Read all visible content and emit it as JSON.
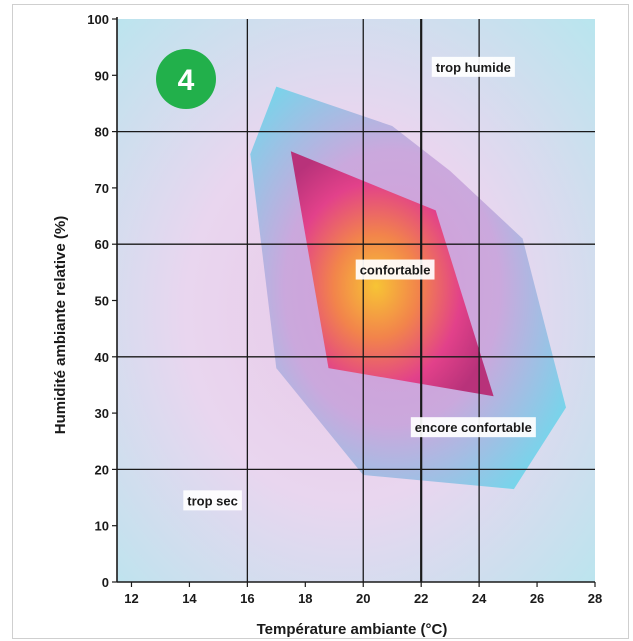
{
  "badge": {
    "text": "4",
    "color": "#22b04b"
  },
  "chart_data": {
    "type": "area",
    "xlabel": "Température ambiante (°C)",
    "ylabel": "Humidité ambiante relative (%)",
    "xlim": [
      11.5,
      28
    ],
    "ylim": [
      0,
      100
    ],
    "xticks": [
      12,
      14,
      16,
      18,
      20,
      22,
      24,
      26,
      28
    ],
    "yticks": [
      0,
      10,
      20,
      30,
      40,
      50,
      60,
      70,
      80,
      90,
      100
    ],
    "grid_x": [
      16,
      20,
      22,
      24
    ],
    "grid_y": [
      20,
      40,
      60,
      80
    ],
    "bold_grid_x": [
      22
    ],
    "regions": [
      {
        "name": "encore confortable",
        "color": "#7fd3ea",
        "points": [
          [
            17,
            88
          ],
          [
            21,
            81
          ],
          [
            23,
            73
          ],
          [
            25.5,
            61
          ],
          [
            27,
            31
          ],
          [
            25.2,
            16.5
          ],
          [
            20,
            19
          ],
          [
            17,
            38
          ],
          [
            16.1,
            76
          ]
        ]
      },
      {
        "name": "confortable",
        "color": "#d83a8c",
        "points": [
          [
            17.5,
            76.5
          ],
          [
            22.5,
            66
          ],
          [
            24.5,
            33
          ],
          [
            18.8,
            38
          ]
        ]
      }
    ],
    "annotations": [
      {
        "text": "trop humide",
        "x": 23.8,
        "y": 91.5
      },
      {
        "text": "confortable",
        "x": 21.1,
        "y": 55.5
      },
      {
        "text": "encore confortable",
        "x": 23.8,
        "y": 27.5
      },
      {
        "text": "trop sec",
        "x": 14.8,
        "y": 14.5
      }
    ],
    "colors": {
      "background": "#b8e4ef",
      "grid": "#1a1a1a",
      "hot_core": "#f6c13a",
      "outer_haze": "#e3bfe3"
    }
  }
}
